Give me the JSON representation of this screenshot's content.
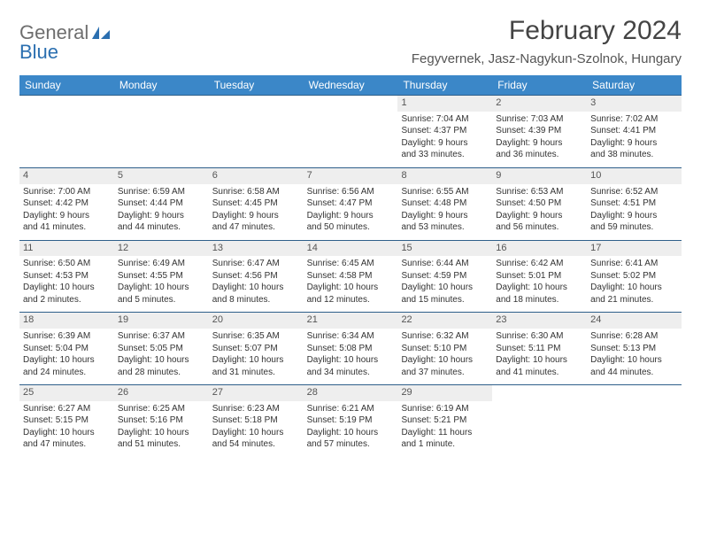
{
  "logo": {
    "word1": "General",
    "word2": "Blue"
  },
  "title": "February 2024",
  "location": "Fegyvernek, Jasz-Nagykun-Szolnok, Hungary",
  "colors": {
    "header_blue": "#3b87c8",
    "row_border": "#2e5f8a",
    "daynum_bg": "#eeeeee",
    "logo_blue": "#2b6fb0",
    "text": "#333333"
  },
  "day_names": [
    "Sunday",
    "Monday",
    "Tuesday",
    "Wednesday",
    "Thursday",
    "Friday",
    "Saturday"
  ],
  "weeks": [
    [
      null,
      null,
      null,
      null,
      {
        "n": "1",
        "sr": "Sunrise: 7:04 AM",
        "ss": "Sunset: 4:37 PM",
        "d1": "Daylight: 9 hours",
        "d2": "and 33 minutes."
      },
      {
        "n": "2",
        "sr": "Sunrise: 7:03 AM",
        "ss": "Sunset: 4:39 PM",
        "d1": "Daylight: 9 hours",
        "d2": "and 36 minutes."
      },
      {
        "n": "3",
        "sr": "Sunrise: 7:02 AM",
        "ss": "Sunset: 4:41 PM",
        "d1": "Daylight: 9 hours",
        "d2": "and 38 minutes."
      }
    ],
    [
      {
        "n": "4",
        "sr": "Sunrise: 7:00 AM",
        "ss": "Sunset: 4:42 PM",
        "d1": "Daylight: 9 hours",
        "d2": "and 41 minutes."
      },
      {
        "n": "5",
        "sr": "Sunrise: 6:59 AM",
        "ss": "Sunset: 4:44 PM",
        "d1": "Daylight: 9 hours",
        "d2": "and 44 minutes."
      },
      {
        "n": "6",
        "sr": "Sunrise: 6:58 AM",
        "ss": "Sunset: 4:45 PM",
        "d1": "Daylight: 9 hours",
        "d2": "and 47 minutes."
      },
      {
        "n": "7",
        "sr": "Sunrise: 6:56 AM",
        "ss": "Sunset: 4:47 PM",
        "d1": "Daylight: 9 hours",
        "d2": "and 50 minutes."
      },
      {
        "n": "8",
        "sr": "Sunrise: 6:55 AM",
        "ss": "Sunset: 4:48 PM",
        "d1": "Daylight: 9 hours",
        "d2": "and 53 minutes."
      },
      {
        "n": "9",
        "sr": "Sunrise: 6:53 AM",
        "ss": "Sunset: 4:50 PM",
        "d1": "Daylight: 9 hours",
        "d2": "and 56 minutes."
      },
      {
        "n": "10",
        "sr": "Sunrise: 6:52 AM",
        "ss": "Sunset: 4:51 PM",
        "d1": "Daylight: 9 hours",
        "d2": "and 59 minutes."
      }
    ],
    [
      {
        "n": "11",
        "sr": "Sunrise: 6:50 AM",
        "ss": "Sunset: 4:53 PM",
        "d1": "Daylight: 10 hours",
        "d2": "and 2 minutes."
      },
      {
        "n": "12",
        "sr": "Sunrise: 6:49 AM",
        "ss": "Sunset: 4:55 PM",
        "d1": "Daylight: 10 hours",
        "d2": "and 5 minutes."
      },
      {
        "n": "13",
        "sr": "Sunrise: 6:47 AM",
        "ss": "Sunset: 4:56 PM",
        "d1": "Daylight: 10 hours",
        "d2": "and 8 minutes."
      },
      {
        "n": "14",
        "sr": "Sunrise: 6:45 AM",
        "ss": "Sunset: 4:58 PM",
        "d1": "Daylight: 10 hours",
        "d2": "and 12 minutes."
      },
      {
        "n": "15",
        "sr": "Sunrise: 6:44 AM",
        "ss": "Sunset: 4:59 PM",
        "d1": "Daylight: 10 hours",
        "d2": "and 15 minutes."
      },
      {
        "n": "16",
        "sr": "Sunrise: 6:42 AM",
        "ss": "Sunset: 5:01 PM",
        "d1": "Daylight: 10 hours",
        "d2": "and 18 minutes."
      },
      {
        "n": "17",
        "sr": "Sunrise: 6:41 AM",
        "ss": "Sunset: 5:02 PM",
        "d1": "Daylight: 10 hours",
        "d2": "and 21 minutes."
      }
    ],
    [
      {
        "n": "18",
        "sr": "Sunrise: 6:39 AM",
        "ss": "Sunset: 5:04 PM",
        "d1": "Daylight: 10 hours",
        "d2": "and 24 minutes."
      },
      {
        "n": "19",
        "sr": "Sunrise: 6:37 AM",
        "ss": "Sunset: 5:05 PM",
        "d1": "Daylight: 10 hours",
        "d2": "and 28 minutes."
      },
      {
        "n": "20",
        "sr": "Sunrise: 6:35 AM",
        "ss": "Sunset: 5:07 PM",
        "d1": "Daylight: 10 hours",
        "d2": "and 31 minutes."
      },
      {
        "n": "21",
        "sr": "Sunrise: 6:34 AM",
        "ss": "Sunset: 5:08 PM",
        "d1": "Daylight: 10 hours",
        "d2": "and 34 minutes."
      },
      {
        "n": "22",
        "sr": "Sunrise: 6:32 AM",
        "ss": "Sunset: 5:10 PM",
        "d1": "Daylight: 10 hours",
        "d2": "and 37 minutes."
      },
      {
        "n": "23",
        "sr": "Sunrise: 6:30 AM",
        "ss": "Sunset: 5:11 PM",
        "d1": "Daylight: 10 hours",
        "d2": "and 41 minutes."
      },
      {
        "n": "24",
        "sr": "Sunrise: 6:28 AM",
        "ss": "Sunset: 5:13 PM",
        "d1": "Daylight: 10 hours",
        "d2": "and 44 minutes."
      }
    ],
    [
      {
        "n": "25",
        "sr": "Sunrise: 6:27 AM",
        "ss": "Sunset: 5:15 PM",
        "d1": "Daylight: 10 hours",
        "d2": "and 47 minutes."
      },
      {
        "n": "26",
        "sr": "Sunrise: 6:25 AM",
        "ss": "Sunset: 5:16 PM",
        "d1": "Daylight: 10 hours",
        "d2": "and 51 minutes."
      },
      {
        "n": "27",
        "sr": "Sunrise: 6:23 AM",
        "ss": "Sunset: 5:18 PM",
        "d1": "Daylight: 10 hours",
        "d2": "and 54 minutes."
      },
      {
        "n": "28",
        "sr": "Sunrise: 6:21 AM",
        "ss": "Sunset: 5:19 PM",
        "d1": "Daylight: 10 hours",
        "d2": "and 57 minutes."
      },
      {
        "n": "29",
        "sr": "Sunrise: 6:19 AM",
        "ss": "Sunset: 5:21 PM",
        "d1": "Daylight: 11 hours",
        "d2": "and 1 minute."
      },
      null,
      null
    ]
  ]
}
